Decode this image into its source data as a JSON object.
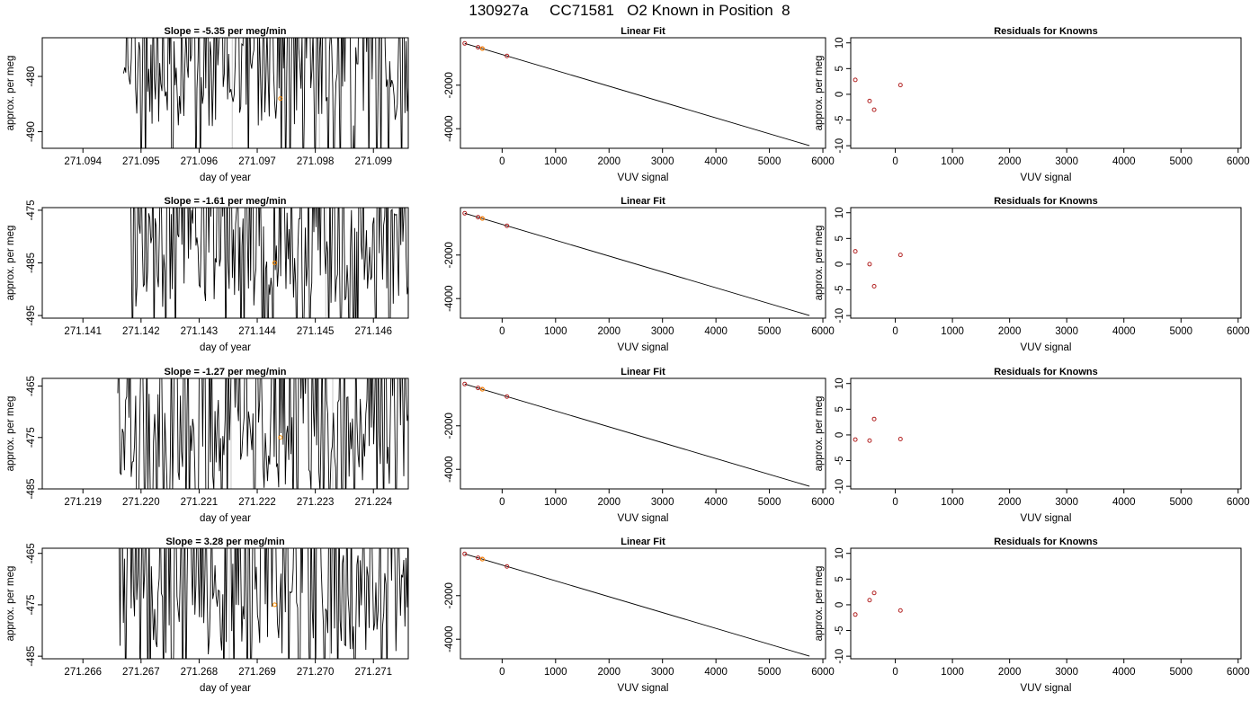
{
  "figure": {
    "title": "130927a     CC71581   O2 Known in Position  8"
  },
  "chart_data": [
    {
      "type": "line",
      "title": "Slope =  -5.35  per meg/min",
      "xlabel": "day of year",
      "ylabel": "approx. per meg",
      "xlim": [
        271.0933,
        271.0996
      ],
      "ylim": [
        -493,
        -473
      ],
      "xticks": [
        "271.094",
        "271.095",
        "271.096",
        "271.097",
        "271.098",
        "271.099"
      ],
      "yticks": [
        "-480",
        "-490"
      ],
      "x_start": 271.0947,
      "x_end": 271.0996,
      "y_base": -480,
      "vlines": [
        271.09657,
        271.09807
      ],
      "marker": {
        "x": 271.0974,
        "y": -484,
        "color": "#ff8c00"
      },
      "line_color": "#000000",
      "vline_color": "#c8c8c8",
      "seed": 11
    },
    {
      "type": "line",
      "title": "Slope =  -1.61  per meg/min",
      "xlabel": "day of year",
      "ylabel": "approx. per meg",
      "xlim": [
        271.1403,
        271.1466
      ],
      "ylim": [
        -495.5,
        -474.5
      ],
      "xticks": [
        "271.141",
        "271.142",
        "271.143",
        "271.144",
        "271.145",
        "271.146"
      ],
      "yticks": [
        "-475",
        "-485",
        "-495"
      ],
      "x_start": 271.1418,
      "x_end": 271.1466,
      "y_base": -484,
      "vlines": [
        271.14345,
        271.14518
      ],
      "marker": {
        "x": 271.1443,
        "y": -485,
        "color": "#ff8c00"
      },
      "line_color": "#000000",
      "vline_color": "#c8c8c8",
      "seed": 23
    },
    {
      "type": "line",
      "title": "Slope =  -1.27  per meg/min",
      "xlabel": "day of year",
      "ylabel": "approx. per meg",
      "xlim": [
        271.2183,
        271.2246
      ],
      "ylim": [
        -485,
        -463.5
      ],
      "xticks": [
        "271.219",
        "271.220",
        "271.221",
        "271.222",
        "271.223",
        "271.224"
      ],
      "yticks": [
        "-465",
        "-475",
        "-485"
      ],
      "x_start": 271.2196,
      "x_end": 271.2246,
      "y_base": -476,
      "vlines": [
        271.22155,
        271.2233
      ],
      "marker": {
        "x": 271.2224,
        "y": -475,
        "color": "#ff8c00"
      },
      "line_color": "#000000",
      "vline_color": "#c8c8c8",
      "seed": 37
    },
    {
      "type": "line",
      "title": "Slope =  3.28  per meg/min",
      "xlabel": "day of year",
      "ylabel": "approx. per meg",
      "xlim": [
        271.2653,
        271.2716
      ],
      "ylim": [
        -485.5,
        -464
      ],
      "xticks": [
        "271.266",
        "271.267",
        "271.268",
        "271.269",
        "271.270",
        "271.271"
      ],
      "yticks": [
        "-465",
        "-475",
        "-485"
      ],
      "x_start": 271.2666,
      "x_end": 271.2716,
      "y_base": -475,
      "vlines": [
        271.26852,
        271.27025
      ],
      "marker": {
        "x": 271.2693,
        "y": -475,
        "color": "#ff8c00"
      },
      "line_color": "#000000",
      "vline_color": "#c8c8c8",
      "seed": 51
    },
    {
      "type": "scatter",
      "title": "Linear Fit",
      "xlabel": "VUV signal",
      "ylabel": "",
      "xlim": [
        -780,
        6050
      ],
      "ylim": [
        -4900,
        180
      ],
      "xticks": [
        0,
        1000,
        2000,
        3000,
        4000,
        5000,
        6000
      ],
      "yticks": [
        -2000,
        -4000
      ],
      "fit_line": {
        "x": [
          -700,
          5750
        ],
        "y": [
          -80,
          -4780
        ]
      },
      "points": {
        "x": [
          -700,
          -450,
          -370,
          90
        ],
        "y": [
          -80,
          -258,
          -320,
          -655
        ],
        "color": "#b22222"
      },
      "highlight": {
        "x": [
          -370
        ],
        "y": [
          -320
        ],
        "color": "#ff8c00"
      }
    },
    {
      "type": "scatter",
      "title": "Linear Fit",
      "xlabel": "VUV signal",
      "ylabel": "",
      "xlim": [
        -780,
        6050
      ],
      "ylim": [
        -4900,
        180
      ],
      "xticks": [
        0,
        1000,
        2000,
        3000,
        4000,
        5000,
        6000
      ],
      "yticks": [
        -2000,
        -4000
      ],
      "fit_line": {
        "x": [
          -700,
          5750
        ],
        "y": [
          -80,
          -4780
        ]
      },
      "points": {
        "x": [
          -700,
          -450,
          -370,
          90
        ],
        "y": [
          -80,
          -258,
          -320,
          -655
        ],
        "color": "#b22222"
      },
      "highlight": {
        "x": [
          -370
        ],
        "y": [
          -320
        ],
        "color": "#ff8c00"
      }
    },
    {
      "type": "scatter",
      "title": "Linear Fit",
      "xlabel": "VUV signal",
      "ylabel": "",
      "xlim": [
        -780,
        6050
      ],
      "ylim": [
        -4900,
        180
      ],
      "xticks": [
        0,
        1000,
        2000,
        3000,
        4000,
        5000,
        6000
      ],
      "yticks": [
        -2000,
        -4000
      ],
      "fit_line": {
        "x": [
          -700,
          5750
        ],
        "y": [
          -80,
          -4780
        ]
      },
      "points": {
        "x": [
          -700,
          -450,
          -370,
          90
        ],
        "y": [
          -80,
          -258,
          -320,
          -655
        ],
        "color": "#b22222"
      },
      "highlight": {
        "x": [
          -370
        ],
        "y": [
          -320
        ],
        "color": "#ff8c00"
      }
    },
    {
      "type": "scatter",
      "title": "Linear Fit",
      "xlabel": "VUV signal",
      "ylabel": "",
      "xlim": [
        -780,
        6050
      ],
      "ylim": [
        -4900,
        180
      ],
      "xticks": [
        0,
        1000,
        2000,
        3000,
        4000,
        5000,
        6000
      ],
      "yticks": [
        -2000,
        -4000
      ],
      "fit_line": {
        "x": [
          -700,
          5750
        ],
        "y": [
          -80,
          -4780
        ]
      },
      "points": {
        "x": [
          -700,
          -450,
          -370,
          90
        ],
        "y": [
          -80,
          -258,
          -320,
          -655
        ],
        "color": "#b22222"
      },
      "highlight": {
        "x": [
          -370
        ],
        "y": [
          -320
        ],
        "color": "#ff8c00"
      }
    },
    {
      "type": "scatter",
      "title": "Residuals for Knowns",
      "xlabel": "VUV signal",
      "ylabel": "approx. per meg",
      "xlim": [
        -780,
        6050
      ],
      "ylim": [
        -10.5,
        11
      ],
      "xticks": [
        0,
        1000,
        2000,
        3000,
        4000,
        5000,
        6000
      ],
      "yticks": [
        10,
        5,
        0,
        -5,
        -10
      ],
      "points": {
        "x": [
          -700,
          -450,
          -370,
          90
        ],
        "y": [
          2.8,
          -1.3,
          -3.0,
          1.8
        ],
        "color": "#b22222"
      }
    },
    {
      "type": "scatter",
      "title": "Residuals for Knowns",
      "xlabel": "VUV signal",
      "ylabel": "approx. per meg",
      "xlim": [
        -780,
        6050
      ],
      "ylim": [
        -10.5,
        11
      ],
      "xticks": [
        0,
        1000,
        2000,
        3000,
        4000,
        5000,
        6000
      ],
      "yticks": [
        10,
        5,
        0,
        -5,
        -10
      ],
      "points": {
        "x": [
          -700,
          -450,
          -370,
          90
        ],
        "y": [
          2.5,
          0.0,
          -4.3,
          1.8
        ],
        "color": "#b22222"
      }
    },
    {
      "type": "scatter",
      "title": "Residuals for Knowns",
      "xlabel": "VUV signal",
      "ylabel": "approx. per meg",
      "xlim": [
        -780,
        6050
      ],
      "ylim": [
        -10.5,
        11
      ],
      "xticks": [
        0,
        1000,
        2000,
        3000,
        4000,
        5000,
        6000
      ],
      "yticks": [
        10,
        5,
        0,
        -5,
        -10
      ],
      "points": {
        "x": [
          -700,
          -450,
          -370,
          90
        ],
        "y": [
          -0.9,
          -1.1,
          3.1,
          -0.8
        ],
        "color": "#b22222"
      }
    },
    {
      "type": "scatter",
      "title": "Residuals for Knowns",
      "xlabel": "VUV signal",
      "ylabel": "approx. per meg",
      "xlim": [
        -780,
        6050
      ],
      "ylim": [
        -10.5,
        11
      ],
      "xticks": [
        0,
        1000,
        2000,
        3000,
        4000,
        5000,
        6000
      ],
      "yticks": [
        10,
        5,
        0,
        -5,
        -10
      ],
      "points": {
        "x": [
          -700,
          -450,
          -370,
          90
        ],
        "y": [
          -1.9,
          0.9,
          2.3,
          -1.1
        ],
        "color": "#b22222"
      }
    }
  ]
}
